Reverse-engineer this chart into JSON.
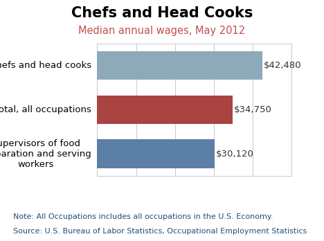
{
  "title": "Chefs and Head Cooks",
  "subtitle": "Median annual wages, May 2012",
  "categories": [
    "Supervisors of food\npreparation and serving\nworkers",
    "Total, all occupations",
    "Chefs and head cooks"
  ],
  "values": [
    30120,
    34750,
    42480
  ],
  "labels": [
    "$30,120",
    "$34,750",
    "$42,480"
  ],
  "bar_colors": [
    "#5b7fa6",
    "#a94442",
    "#8daaba"
  ],
  "note_line1": "Note: All Occupations includes all occupations in the U.S. Economy.",
  "note_line2": "Source: U.S. Bureau of Labor Statistics, Occupational Employment Statistics",
  "note_color": "#1f4e79",
  "background_color": "#ffffff",
  "xlim": [
    0,
    48000
  ],
  "grid_color": "#c8c8c8",
  "title_fontsize": 15,
  "subtitle_fontsize": 10.5,
  "label_fontsize": 9.5,
  "tick_label_fontsize": 9.5,
  "note_fontsize": 8
}
